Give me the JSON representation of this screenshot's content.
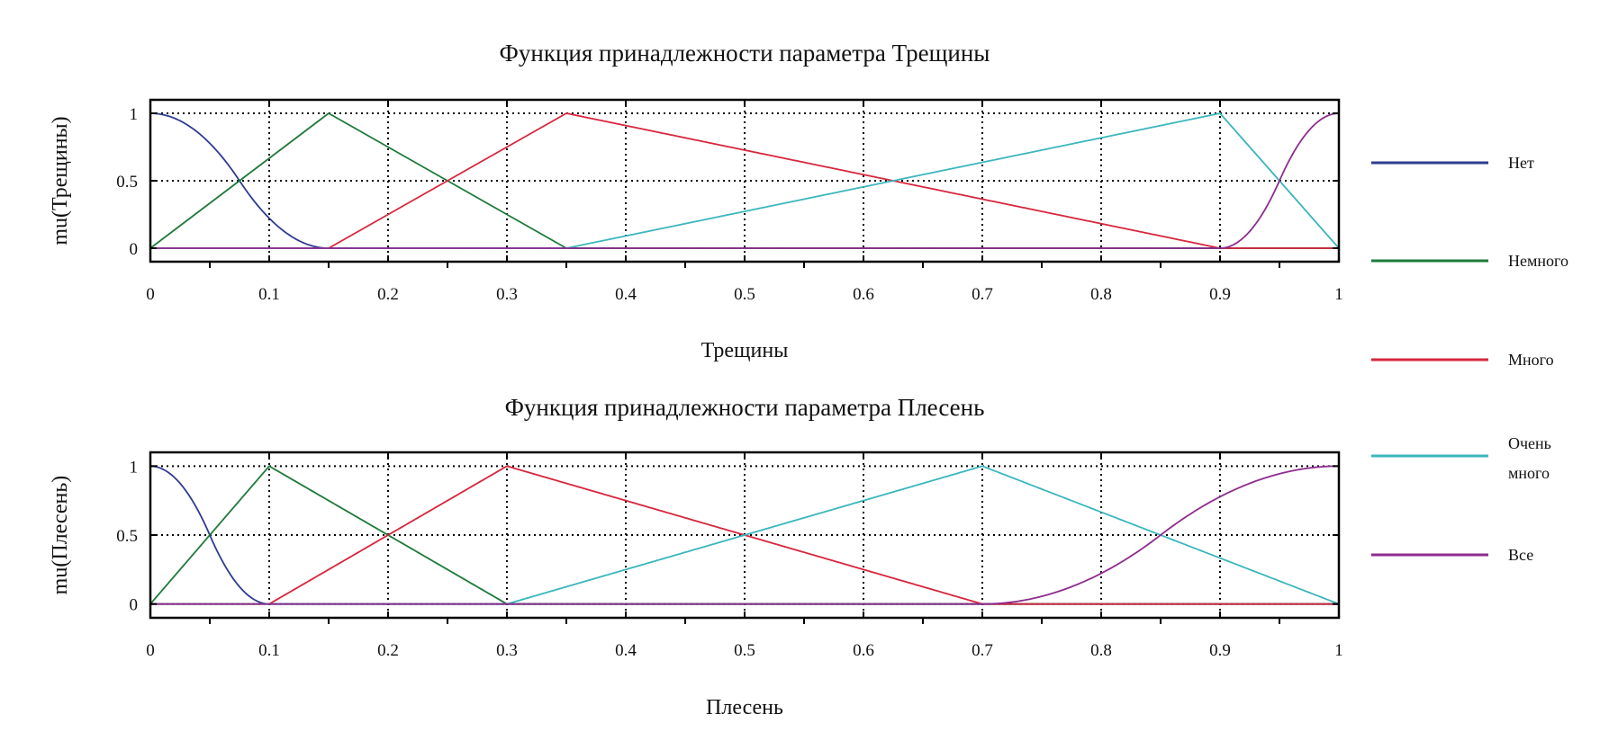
{
  "legend": {
    "placement": "right",
    "entries": [
      {
        "id": "net",
        "label_lines": [
          "Нет"
        ],
        "color": "#2f3b8f"
      },
      {
        "id": "nemnogo",
        "label_lines": [
          "Немного"
        ],
        "color": "#1e7a3a"
      },
      {
        "id": "mnogo",
        "label_lines": [
          "Много"
        ],
        "color": "#d7263d"
      },
      {
        "id": "ochen",
        "label_lines": [
          "Очень",
          "много"
        ],
        "color": "#3bb6bd"
      },
      {
        "id": "vse",
        "label_lines": [
          "Все"
        ],
        "color": "#8e2c8e"
      }
    ]
  },
  "chart_data": [
    {
      "type": "line",
      "title": "Функция принадлежности параметра Трещины",
      "xlabel": "Трещины",
      "ylabel": "mu(Трещины)",
      "xlim": [
        0,
        1
      ],
      "ylim": [
        -0.1,
        1.1
      ],
      "grid": true,
      "x_ticks": [
        0,
        0.1,
        0.2,
        0.3,
        0.4,
        0.5,
        0.6,
        0.7,
        0.8,
        0.9,
        1
      ],
      "x_tick_labels": [
        "0",
        "0.1",
        "0.2",
        "0.3",
        "0.4",
        "0.5",
        "0.6",
        "0.7",
        "0.8",
        "0.9",
        "1"
      ],
      "y_ticks": [
        0,
        0.5,
        1
      ],
      "y_tick_labels": [
        "0",
        "0.5",
        "1"
      ],
      "series": [
        {
          "ref": "net",
          "kind": "zmf",
          "params": [
            0,
            0.15
          ]
        },
        {
          "ref": "nemnogo",
          "kind": "trimf",
          "params": [
            0,
            0.15,
            0.35
          ]
        },
        {
          "ref": "mnogo",
          "kind": "trimf",
          "params": [
            0.15,
            0.35,
            0.9
          ]
        },
        {
          "ref": "ochen",
          "kind": "trimf",
          "params": [
            0.35,
            0.9,
            1
          ]
        },
        {
          "ref": "vse",
          "kind": "smf",
          "params": [
            0.9,
            1
          ]
        }
      ]
    },
    {
      "type": "line",
      "title": "Функция принадлежности параметра Плесень",
      "xlabel": "Плесень",
      "ylabel": "mu(Плесень)",
      "xlim": [
        0,
        1
      ],
      "ylim": [
        -0.1,
        1.1
      ],
      "grid": true,
      "x_ticks": [
        0,
        0.1,
        0.2,
        0.3,
        0.4,
        0.5,
        0.6,
        0.7,
        0.8,
        0.9,
        1
      ],
      "x_tick_labels": [
        "0",
        "0.1",
        "0.2",
        "0.3",
        "0.4",
        "0.5",
        "0.6",
        "0.7",
        "0.8",
        "0.9",
        "1"
      ],
      "y_ticks": [
        0,
        0.5,
        1
      ],
      "y_tick_labels": [
        "0",
        "0.5",
        "1"
      ],
      "series": [
        {
          "ref": "net",
          "kind": "zmf",
          "params": [
            0,
            0.1
          ]
        },
        {
          "ref": "nemnogo",
          "kind": "trimf",
          "params": [
            0,
            0.1,
            0.3
          ]
        },
        {
          "ref": "mnogo",
          "kind": "trimf",
          "params": [
            0.1,
            0.3,
            0.7
          ]
        },
        {
          "ref": "ochen",
          "kind": "trimf",
          "params": [
            0.3,
            0.7,
            1
          ]
        },
        {
          "ref": "vse",
          "kind": "smf",
          "params": [
            0.7,
            1
          ]
        }
      ]
    }
  ]
}
